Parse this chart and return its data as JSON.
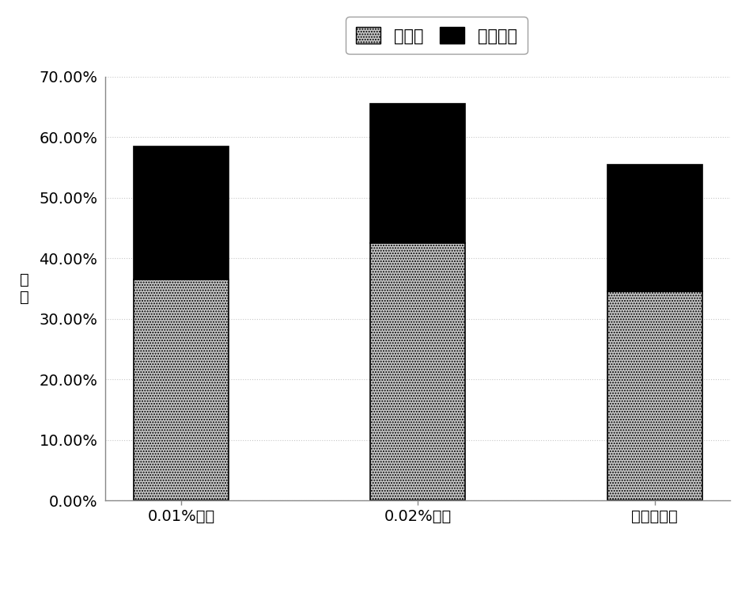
{
  "categories": [
    "0.01%氰胺",
    "0.02%氰胺",
    "未添加氰胺"
  ],
  "cellulose": [
    0.365,
    0.425,
    0.345
  ],
  "hemicellulose": [
    0.22,
    0.23,
    0.21
  ],
  "cellulose_color": "#c8c8c8",
  "hemicellulose_color": "#000000",
  "bar_edge_color": "#000000",
  "legend_label_cellulose": "纤维素",
  "legend_label_hemicellulose": "半纤维素",
  "ylabel_line1": "组",
  "ylabel_line2": "重",
  "ylim": [
    0.0,
    0.7
  ],
  "yticks": [
    0.0,
    0.1,
    0.2,
    0.3,
    0.4,
    0.5,
    0.6,
    0.7
  ],
  "ytick_labels": [
    "0.00%",
    "10.00%",
    "20.00%",
    "30.00%",
    "40.00%",
    "50.00%",
    "60.00%",
    "70.00%"
  ],
  "grid_color": "#c8c8c8",
  "grid_style": "dotted",
  "background_color": "#ffffff",
  "plot_bg_color": "#ffffff",
  "bar_width": 0.4,
  "legend_fontsize": 15,
  "tick_fontsize": 14,
  "xlabel_fontsize": 14,
  "ylabel_fontsize": 14
}
